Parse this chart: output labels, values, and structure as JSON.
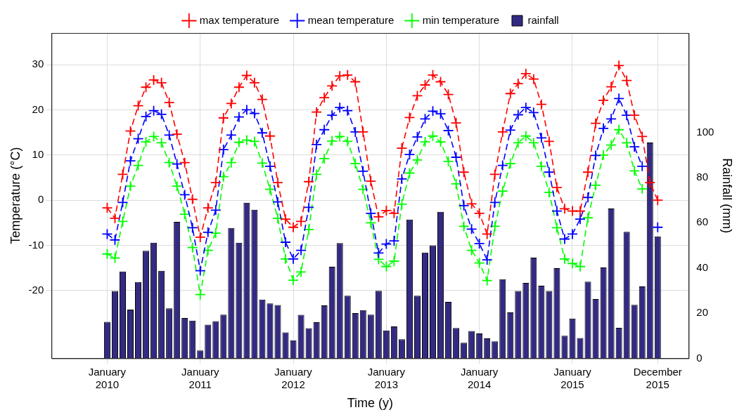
{
  "chart_data": {
    "type": "line",
    "xlabel": "Time (y)",
    "ylabel": "Temperature (°C)",
    "y2label": "Rainfall (mm)",
    "x": [
      "2010-01",
      "2010-02",
      "2010-03",
      "2010-04",
      "2010-05",
      "2010-06",
      "2010-07",
      "2010-08",
      "2010-09",
      "2010-10",
      "2010-11",
      "2010-12",
      "2011-01",
      "2011-02",
      "2011-03",
      "2011-04",
      "2011-05",
      "2011-06",
      "2011-07",
      "2011-08",
      "2011-09",
      "2011-10",
      "2011-11",
      "2011-12",
      "2012-01",
      "2012-02",
      "2012-03",
      "2012-04",
      "2012-05",
      "2012-06",
      "2012-07",
      "2012-08",
      "2012-09",
      "2012-10",
      "2012-11",
      "2012-12",
      "2013-01",
      "2013-02",
      "2013-03",
      "2013-04",
      "2013-05",
      "2013-06",
      "2013-07",
      "2013-08",
      "2013-09",
      "2013-10",
      "2013-11",
      "2013-12",
      "2014-01",
      "2014-02",
      "2014-03",
      "2014-04",
      "2014-05",
      "2014-06",
      "2014-07",
      "2014-08",
      "2014-09",
      "2014-10",
      "2014-11",
      "2014-12",
      "2015-01",
      "2015-02",
      "2015-03",
      "2015-04",
      "2015-05",
      "2015-06",
      "2015-07",
      "2015-08",
      "2015-09",
      "2015-10",
      "2015-11",
      "2015-12"
    ],
    "xlim": [
      "2009-05-26",
      "2016-04-01"
    ],
    "xticks": [
      {
        "value": "2010-01",
        "label": "January 2010"
      },
      {
        "value": "2011-01",
        "label": "January 2011"
      },
      {
        "value": "2012-01",
        "label": "January 2012"
      },
      {
        "value": "2013-01",
        "label": "January 2013"
      },
      {
        "value": "2014-01",
        "label": "January 2014"
      },
      {
        "value": "2015-01",
        "label": "January 2015"
      },
      {
        "value": "2015-12",
        "label": "December 2015"
      }
    ],
    "ylim": [
      -35,
      37
    ],
    "yticks": [
      -20,
      -10,
      0,
      10,
      20,
      30
    ],
    "y2lim": [
      0,
      144
    ],
    "y2ticks": [
      0,
      20,
      40,
      60,
      80,
      100
    ],
    "grid": true,
    "legend": "top",
    "marker": "cross",
    "line_style": "dashed",
    "series": [
      {
        "name": "max temperature",
        "color": "#ff0000",
        "values": [
          -1.7,
          -4.0,
          5.7,
          15.3,
          20.9,
          25.0,
          26.6,
          26.0,
          21.6,
          14.6,
          8.3,
          0.2,
          -8.2,
          -1.7,
          3.9,
          18.2,
          21.4,
          25.0,
          27.6,
          26.0,
          22.3,
          14.2,
          3.9,
          -4.2,
          -6.0,
          -4.7,
          4.1,
          19.5,
          22.7,
          25.3,
          27.5,
          27.7,
          26.2,
          15.1,
          4.2,
          -3.7,
          -2.3,
          -2.9,
          11.5,
          18.3,
          23.1,
          25.5,
          27.7,
          26.2,
          23.4,
          17.1,
          6.2,
          -0.8,
          -2.9,
          -7.5,
          5.7,
          15.1,
          23.6,
          25.8,
          28.0,
          26.8,
          21.2,
          13.0,
          2.8,
          -1.9,
          -2.4,
          -2.4,
          6.2,
          17.0,
          22.1,
          25.1,
          29.8,
          26.5,
          18.8,
          14.1,
          3.9,
          0.0
        ]
      },
      {
        "name": "mean temperature",
        "color": "#0000ff",
        "values": [
          -7.5,
          -8.8,
          -0.5,
          8.7,
          13.6,
          18.5,
          19.8,
          19.0,
          14.4,
          8.0,
          1.2,
          -6.1,
          -15.6,
          -7.1,
          -2.2,
          11.2,
          14.4,
          18.4,
          20.0,
          19.2,
          14.9,
          7.5,
          -0.4,
          -9.3,
          -13.0,
          -11.1,
          -1.6,
          12.3,
          15.6,
          18.8,
          20.5,
          19.8,
          15.1,
          6.4,
          -2.9,
          -11.7,
          -9.7,
          -9.0,
          4.7,
          10.1,
          14.0,
          18.0,
          19.7,
          19.1,
          15.4,
          9.5,
          -1.2,
          -6.4,
          -9.6,
          -13.2,
          -0.5,
          7.7,
          15.5,
          18.9,
          20.5,
          19.4,
          13.8,
          6.2,
          -2.4,
          -8.6,
          -7.5,
          -4.2,
          0.6,
          9.9,
          15.9,
          18.0,
          22.5,
          18.8,
          11.8,
          7.5,
          null,
          -6.0
        ]
      },
      {
        "name": "min temperature",
        "color": "#00ff00",
        "values": [
          -11.9,
          -12.8,
          -4.7,
          3.1,
          7.7,
          12.9,
          14.1,
          12.7,
          8.3,
          3.1,
          -3.1,
          -10.5,
          -20.9,
          -11.1,
          -7.3,
          5.2,
          8.3,
          12.8,
          13.3,
          13.0,
          8.2,
          2.4,
          -4.0,
          -13.0,
          -17.7,
          -15.9,
          -6.5,
          5.7,
          9.2,
          13.1,
          14.1,
          13.0,
          8.1,
          2.4,
          -5.0,
          -13.1,
          -14.7,
          -13.5,
          -0.9,
          6.0,
          8.9,
          12.9,
          14.2,
          12.9,
          8.6,
          3.6,
          -5.8,
          -11.1,
          -13.9,
          -17.8,
          -5.8,
          2.0,
          8.1,
          12.7,
          14.2,
          12.7,
          7.5,
          1.7,
          -6.1,
          -13.0,
          -14.0,
          -14.7,
          -3.9,
          3.3,
          10.0,
          12.2,
          15.6,
          12.7,
          6.5,
          2.5,
          null,
          null
        ]
      },
      {
        "name": "rainfall",
        "type": "bar",
        "axis": "y2",
        "color": "#332a83",
        "values": [
          16.1,
          29.8,
          38.4,
          21.6,
          33.8,
          47.6,
          51.2,
          38.7,
          22.1,
          60.4,
          17.8,
          16.7,
          3.5,
          14.9,
          16.4,
          19.3,
          57.7,
          51.2,
          68.9,
          65.8,
          26.0,
          24.3,
          23.6,
          11.5,
          8.0,
          19.2,
          13.3,
          16.0,
          23.4,
          40.5,
          51.0,
          27.7,
          20.0,
          21.3,
          19.3,
          29.9,
          12.3,
          14.1,
          8.4,
          61.4,
          27.7,
          46.8,
          50.0,
          64.8,
          25.0,
          13.4,
          6.9,
          12.1,
          11.0,
          8.8,
          7.5,
          35.0,
          20.3,
          29.8,
          33.4,
          44.6,
          32.1,
          29.8,
          39.9,
          10.0,
          17.6,
          9.0,
          33.9,
          26.2,
          40.2,
          66.3,
          13.5,
          56.0,
          23.7,
          31.8,
          95.5,
          54.0
        ]
      }
    ]
  }
}
